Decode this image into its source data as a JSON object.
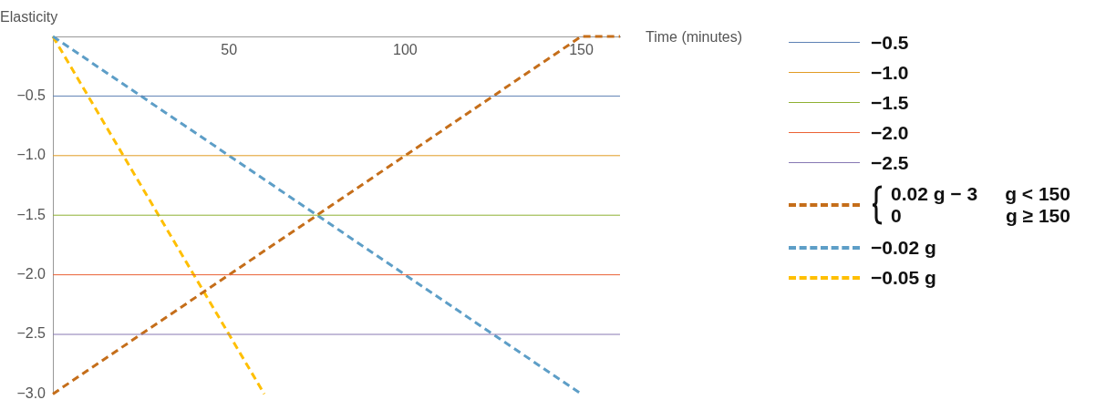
{
  "chart_data": {
    "type": "line",
    "xlabel": "Time (minutes)",
    "ylabel": "Elasticity",
    "xlim": [
      0,
      161
    ],
    "ylim": [
      -3,
      0
    ],
    "xticks": [
      50,
      100,
      150
    ],
    "yticks": [
      {
        "value": -0.5,
        "label": "−0.5"
      },
      {
        "value": -1,
        "label": "−1.0"
      },
      {
        "value": -1.5,
        "label": "−1.5"
      },
      {
        "value": -2,
        "label": "−2.0"
      },
      {
        "value": -2.5,
        "label": "−2.5"
      },
      {
        "value": -3,
        "label": "−3.0"
      }
    ],
    "grid": false,
    "legend": "right",
    "marker": "none",
    "series": [
      {
        "name": "−0.5",
        "color": "#5e81b5",
        "line_style": "solid",
        "x": [
          0,
          161
        ],
        "values": [
          -0.5,
          -0.5
        ]
      },
      {
        "name": "−1.0",
        "color": "#e19c24",
        "line_style": "solid",
        "x": [
          0,
          161
        ],
        "values": [
          -1.0,
          -1.0
        ]
      },
      {
        "name": "−1.5",
        "color": "#8fb032",
        "line_style": "solid",
        "x": [
          0,
          161
        ],
        "values": [
          -1.5,
          -1.5
        ]
      },
      {
        "name": "−2.0",
        "color": "#eb6235",
        "line_style": "solid",
        "x": [
          0,
          161
        ],
        "values": [
          -2.0,
          -2.0
        ]
      },
      {
        "name": "−2.5",
        "color": "#8778b3",
        "line_style": "solid",
        "x": [
          0,
          161
        ],
        "values": [
          -2.5,
          -2.5
        ]
      },
      {
        "name": "0.02 g − 3   g < 150\n0   g ≥ 150",
        "color": "#c56e1a",
        "line_style": "dashed",
        "x": [
          0,
          150,
          161
        ],
        "values": [
          -3,
          0,
          0
        ]
      },
      {
        "name": "−0.02 g",
        "color": "#5d9ec7",
        "line_style": "dashed",
        "x": [
          0,
          150
        ],
        "values": [
          0,
          -3
        ]
      },
      {
        "name": "−0.05 g",
        "color": "#ffbf00",
        "line_style": "dashed",
        "x": [
          0,
          60
        ],
        "values": [
          0,
          -3
        ]
      }
    ]
  }
}
